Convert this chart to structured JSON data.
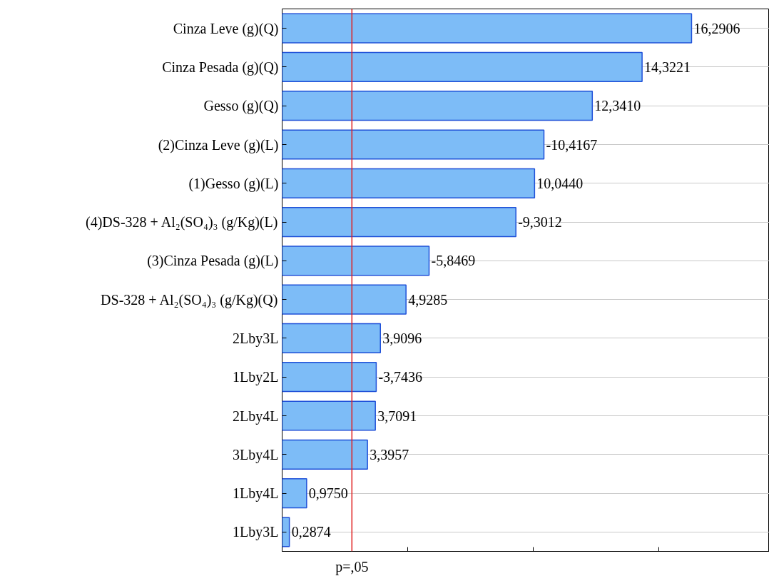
{
  "chart_data": {
    "type": "bar",
    "orientation": "horizontal",
    "categories": [
      "Cinza Leve (g)(Q)",
      "Cinza Pesada (g)(Q)",
      "Gesso (g)(Q)",
      "(2)Cinza Leve (g)(L)",
      "(1)Gesso (g)(L)",
      "(4)DS-328 + Al₂(SO₄)₃ (g/Kg)(L)",
      "(3)Cinza Pesada (g)(L)",
      "DS-328 + Al₂(SO₄)₃ (g/Kg)(Q)",
      "2Lby3L",
      "1Lby2L",
      "2Lby4L",
      "3Lby4L",
      "1Lby4L",
      "1Lby3L"
    ],
    "values": [
      16.2906,
      14.3221,
      12.341,
      10.4167,
      10.044,
      9.3012,
      5.8469,
      4.9285,
      3.9096,
      3.7436,
      3.7091,
      3.3957,
      0.975,
      0.2874
    ],
    "value_labels": [
      "16,2906",
      "14,3221",
      "12,3410",
      "-10,4167",
      "10,0440",
      "-9,3012",
      "-5,8469",
      "4,9285",
      "3,9096",
      "-3,7436",
      "3,7091",
      "3,3957",
      "0,9750",
      "0,2874"
    ],
    "color": "#7dbcf7",
    "tick_labels": "y",
    "grid": "y",
    "ref_lines": [
      {
        "axis": "x",
        "value": 2.776,
        "label": "p=,05",
        "color": "#e02020"
      }
    ]
  }
}
